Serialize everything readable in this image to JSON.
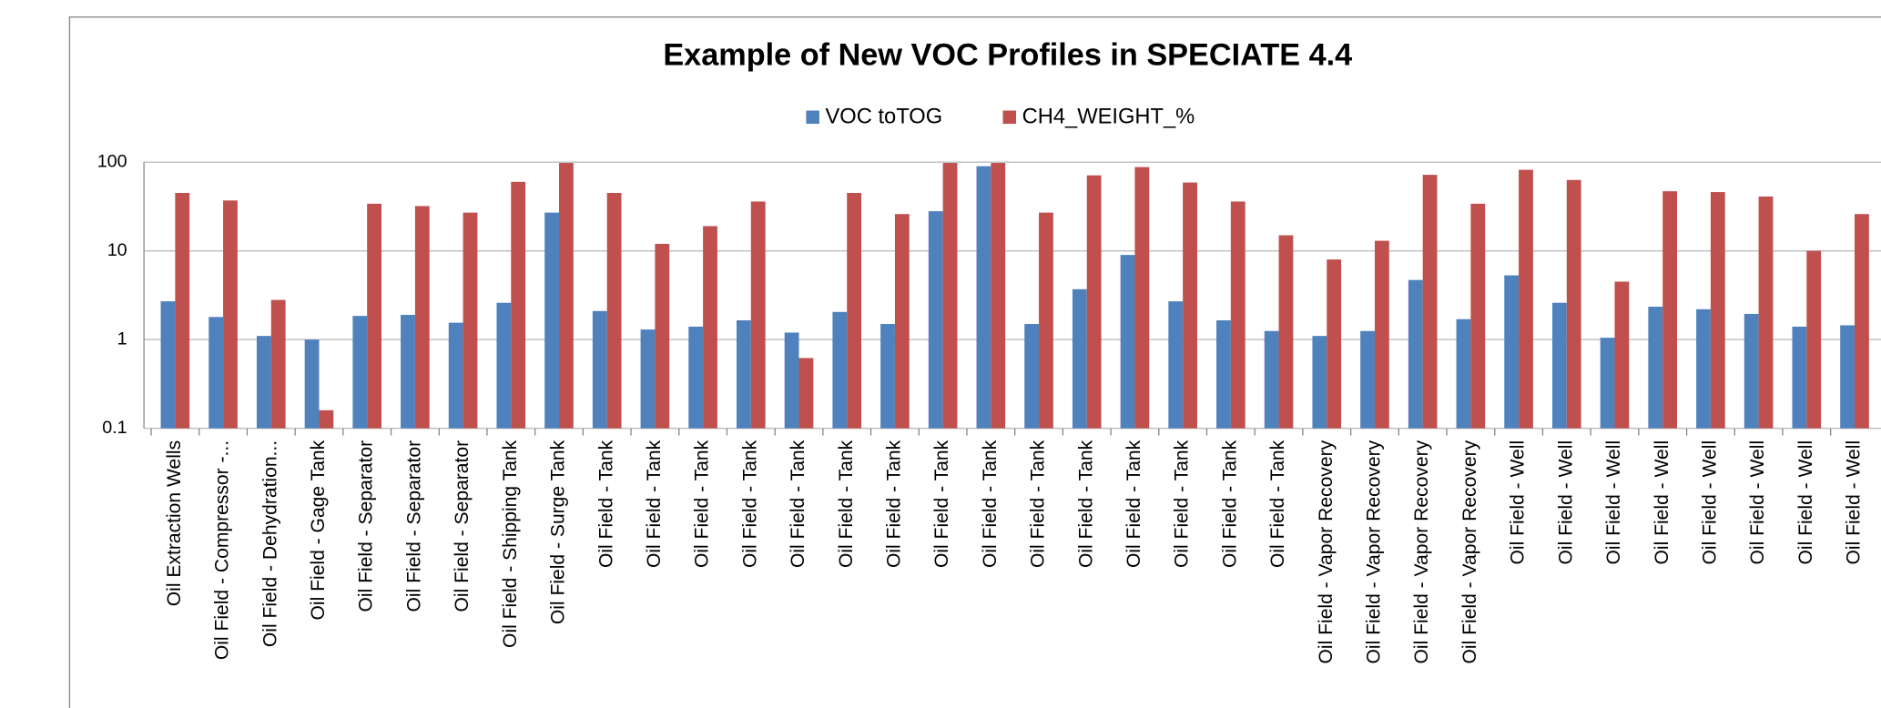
{
  "chart_data": {
    "type": "bar",
    "title": "Example of New VOC Profiles in SPECIATE 4.4",
    "categories": [
      "Oil Extraction Wells",
      "Oil Field - Compressor -...",
      "Oil Field - Dehydration...",
      "Oil Field - Gage Tank",
      "Oil Field - Separator",
      "Oil Field - Separator",
      "Oil Field - Separator",
      "Oil Field - Shipping Tank",
      "Oil Field - Surge Tank",
      "Oil Field - Tank",
      "Oil Field - Tank",
      "Oil Field - Tank",
      "Oil Field - Tank",
      "Oil Field - Tank",
      "Oil Field - Tank",
      "Oil Field - Tank",
      "Oil Field - Tank",
      "Oil Field - Tank",
      "Oil Field - Tank",
      "Oil Field - Tank",
      "Oil Field - Tank",
      "Oil Field - Tank",
      "Oil Field - Tank",
      "Oil Field - Tank",
      "Oil Field - Vapor Recovery",
      "Oil Field - Vapor Recovery",
      "Oil Field - Vapor Recovery",
      "Oil Field - Vapor Recovery",
      "Oil Field - Well",
      "Oil Field - Well",
      "Oil Field - Well",
      "Oil Field - Well",
      "Oil Field - Well",
      "Oil Field - Well",
      "Oil Field - Well",
      "Oil Field - Well"
    ],
    "series": [
      {
        "name": "VOC toTOG",
        "color": "#4f81bd",
        "values": [
          2.7,
          1.8,
          1.1,
          1.0,
          1.85,
          1.9,
          1.55,
          2.6,
          27,
          2.1,
          1.3,
          1.4,
          1.65,
          1.2,
          2.05,
          1.5,
          28,
          90,
          1.5,
          3.7,
          9,
          2.7,
          1.65,
          1.25,
          1.1,
          1.25,
          4.7,
          1.7,
          5.3,
          2.6,
          1.05,
          2.35,
          2.2,
          1.95,
          1.4,
          1.45
        ]
      },
      {
        "name": "CH4_WEIGHT_%",
        "color": "#c0504d",
        "values": [
          45,
          37,
          2.8,
          0.16,
          34,
          32,
          27,
          60,
          98,
          45,
          12,
          19,
          36,
          0.62,
          45,
          26,
          98,
          98,
          27,
          71,
          88,
          59,
          36,
          15,
          8,
          13,
          72,
          34,
          82,
          63,
          4.5,
          47,
          46,
          41,
          10,
          26
        ]
      }
    ],
    "ylim": [
      0.1,
      100
    ],
    "yticks": [
      100,
      10,
      1,
      0.1
    ],
    "log_scale": true,
    "grid": true,
    "legend": "top"
  }
}
